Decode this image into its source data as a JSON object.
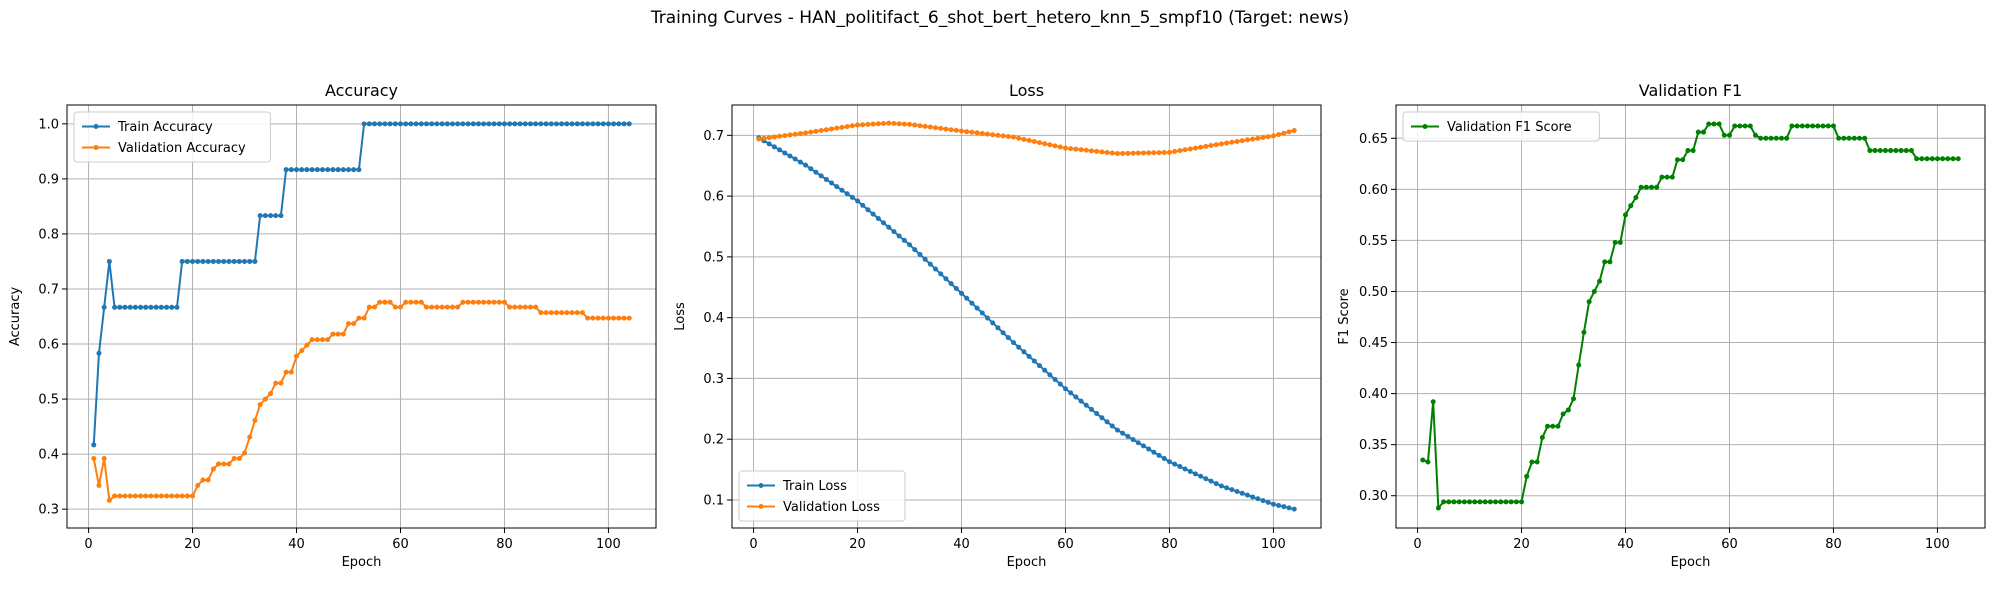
{
  "suptitle": "Training Curves - HAN_politifact_6_shot_bert_hetero_knn_5_smpf10 (Target: news)",
  "colors": {
    "train": "#1f77b4",
    "validation": "#ff7f0e",
    "f1": "#008000",
    "grid": "#b0b0b0"
  },
  "chart_data": [
    {
      "type": "line",
      "title": "Accuracy",
      "xlabel": "Epoch",
      "ylabel": "Accuracy",
      "xlim": [
        -4.15,
        109.15
      ],
      "ylim": [
        0.2658,
        1.0342
      ],
      "xticks": [
        0,
        20,
        40,
        60,
        80,
        100
      ],
      "yticks": [
        0.3,
        0.4,
        0.5,
        0.6,
        0.7,
        0.8,
        0.9,
        1.0
      ],
      "ytick_labels": [
        "0.3",
        "0.4",
        "0.5",
        "0.6",
        "0.7",
        "0.8",
        "0.9",
        "1.0"
      ],
      "grid": true,
      "legend_position": "upper left",
      "series": [
        {
          "name": "Train Accuracy",
          "color": "train",
          "segments": [
            [
              1,
              0.4167
            ],
            [
              2,
              0.5833
            ],
            [
              3,
              0.6667
            ],
            [
              4,
              0.75
            ],
            [
              5,
              0.6667
            ],
            [
              17,
              0.6667
            ],
            [
              18,
              0.75
            ],
            [
              32,
              0.75
            ],
            [
              33,
              0.8333
            ],
            [
              37,
              0.8333
            ],
            [
              38,
              0.9167
            ],
            [
              52,
              0.9167
            ],
            [
              53,
              1.0
            ],
            [
              104,
              1.0
            ]
          ]
        },
        {
          "name": "Validation Accuracy",
          "color": "validation",
          "segments": [
            [
              1,
              0.392
            ],
            [
              2,
              0.343
            ],
            [
              3,
              0.392
            ],
            [
              4,
              0.316
            ],
            [
              5,
              0.324
            ],
            [
              19,
              0.324
            ],
            [
              20,
              0.324
            ],
            [
              21,
              0.343
            ],
            [
              22,
              0.353
            ],
            [
              23,
              0.353
            ],
            [
              24,
              0.373
            ],
            [
              25,
              0.382
            ],
            [
              26,
              0.382
            ],
            [
              27,
              0.382
            ],
            [
              28,
              0.392
            ],
            [
              29,
              0.392
            ],
            [
              30,
              0.402
            ],
            [
              31,
              0.431
            ],
            [
              32,
              0.461
            ],
            [
              33,
              0.49
            ],
            [
              34,
              0.5
            ],
            [
              35,
              0.51
            ],
            [
              36,
              0.529
            ],
            [
              37,
              0.529
            ],
            [
              38,
              0.549
            ],
            [
              39,
              0.549
            ],
            [
              40,
              0.578
            ],
            [
              41,
              0.588
            ],
            [
              42,
              0.598
            ],
            [
              43,
              0.608
            ],
            [
              46,
              0.608
            ],
            [
              47,
              0.618
            ],
            [
              49,
              0.618
            ],
            [
              50,
              0.637
            ],
            [
              51,
              0.637
            ],
            [
              52,
              0.647
            ],
            [
              53,
              0.647
            ],
            [
              54,
              0.667
            ],
            [
              55,
              0.667
            ],
            [
              56,
              0.676
            ],
            [
              58,
              0.676
            ],
            [
              59,
              0.667
            ],
            [
              60,
              0.667
            ],
            [
              61,
              0.676
            ],
            [
              64,
              0.676
            ],
            [
              65,
              0.667
            ],
            [
              71,
              0.667
            ],
            [
              72,
              0.676
            ],
            [
              80,
              0.676
            ],
            [
              81,
              0.667
            ],
            [
              86,
              0.667
            ],
            [
              87,
              0.657
            ],
            [
              95,
              0.657
            ],
            [
              96,
              0.647
            ],
            [
              104,
              0.647
            ]
          ]
        }
      ]
    },
    {
      "type": "line",
      "title": "Loss",
      "xlabel": "Epoch",
      "ylabel": "Loss",
      "xlim": [
        -4.15,
        109.15
      ],
      "ylim": [
        0.0539,
        0.7499
      ],
      "xticks": [
        0,
        20,
        40,
        60,
        80,
        100
      ],
      "yticks": [
        0.1,
        0.2,
        0.3,
        0.4,
        0.5,
        0.6,
        0.7
      ],
      "ytick_labels": [
        "0.1",
        "0.2",
        "0.3",
        "0.4",
        "0.5",
        "0.6",
        "0.7"
      ],
      "grid": true,
      "legend_position": "lower left",
      "series": [
        {
          "name": "Train Loss",
          "color": "train",
          "segments": [
            [
              1,
              0.696
            ],
            [
              10,
              0.651
            ],
            [
              20,
              0.592
            ],
            [
              30,
              0.52
            ],
            [
              40,
              0.44
            ],
            [
              50,
              0.359
            ],
            [
              60,
              0.283
            ],
            [
              70,
              0.215
            ],
            [
              80,
              0.163
            ],
            [
              90,
              0.123
            ],
            [
              100,
              0.093
            ],
            [
              104,
              0.085
            ]
          ]
        },
        {
          "name": "Validation Loss",
          "color": "validation",
          "segments": [
            [
              1,
              0.694
            ],
            [
              10,
              0.704
            ],
            [
              20,
              0.717
            ],
            [
              26,
              0.72
            ],
            [
              30,
              0.718
            ],
            [
              40,
              0.707
            ],
            [
              50,
              0.697
            ],
            [
              60,
              0.679
            ],
            [
              70,
              0.67
            ],
            [
              80,
              0.672
            ],
            [
              90,
              0.686
            ],
            [
              100,
              0.699
            ],
            [
              104,
              0.708
            ]
          ]
        }
      ]
    },
    {
      "type": "line",
      "title": "Validation F1",
      "xlabel": "Epoch",
      "ylabel": "F1 Score",
      "xlim": [
        -4.15,
        109.15
      ],
      "ylim": [
        0.2684,
        0.6826
      ],
      "xticks": [
        0,
        20,
        40,
        60,
        80,
        100
      ],
      "yticks": [
        0.3,
        0.35,
        0.4,
        0.45,
        0.5,
        0.55,
        0.6,
        0.65
      ],
      "ytick_labels": [
        "0.30",
        "0.35",
        "0.40",
        "0.45",
        "0.50",
        "0.55",
        "0.60",
        "0.65"
      ],
      "grid": true,
      "legend_position": "upper left",
      "series": [
        {
          "name": "Validation F1 Score",
          "color": "f1",
          "segments": [
            [
              1,
              0.335
            ],
            [
              2,
              0.333
            ],
            [
              3,
              0.392
            ],
            [
              4,
              0.288
            ],
            [
              5,
              0.294
            ],
            [
              20,
              0.294
            ],
            [
              21,
              0.319
            ],
            [
              22,
              0.333
            ],
            [
              23,
              0.333
            ],
            [
              24,
              0.357
            ],
            [
              25,
              0.368
            ],
            [
              27,
              0.368
            ],
            [
              28,
              0.38
            ],
            [
              29,
              0.384
            ],
            [
              30,
              0.395
            ],
            [
              31,
              0.428
            ],
            [
              32,
              0.46
            ],
            [
              33,
              0.49
            ],
            [
              34,
              0.5
            ],
            [
              35,
              0.51
            ],
            [
              36,
              0.529
            ],
            [
              37,
              0.529
            ],
            [
              38,
              0.548
            ],
            [
              39,
              0.548
            ],
            [
              40,
              0.575
            ],
            [
              41,
              0.584
            ],
            [
              42,
              0.592
            ],
            [
              43,
              0.602
            ],
            [
              46,
              0.602
            ],
            [
              47,
              0.612
            ],
            [
              49,
              0.612
            ],
            [
              50,
              0.629
            ],
            [
              51,
              0.629
            ],
            [
              52,
              0.638
            ],
            [
              53,
              0.638
            ],
            [
              54,
              0.656
            ],
            [
              55,
              0.656
            ],
            [
              56,
              0.664
            ],
            [
              58,
              0.664
            ],
            [
              59,
              0.653
            ],
            [
              60,
              0.653
            ],
            [
              61,
              0.662
            ],
            [
              64,
              0.662
            ],
            [
              65,
              0.653
            ],
            [
              66,
              0.65
            ],
            [
              71,
              0.65
            ],
            [
              72,
              0.662
            ],
            [
              80,
              0.662
            ],
            [
              81,
              0.65
            ],
            [
              86,
              0.65
            ],
            [
              87,
              0.638
            ],
            [
              95,
              0.638
            ],
            [
              96,
              0.63
            ],
            [
              104,
              0.63
            ]
          ]
        }
      ]
    }
  ]
}
